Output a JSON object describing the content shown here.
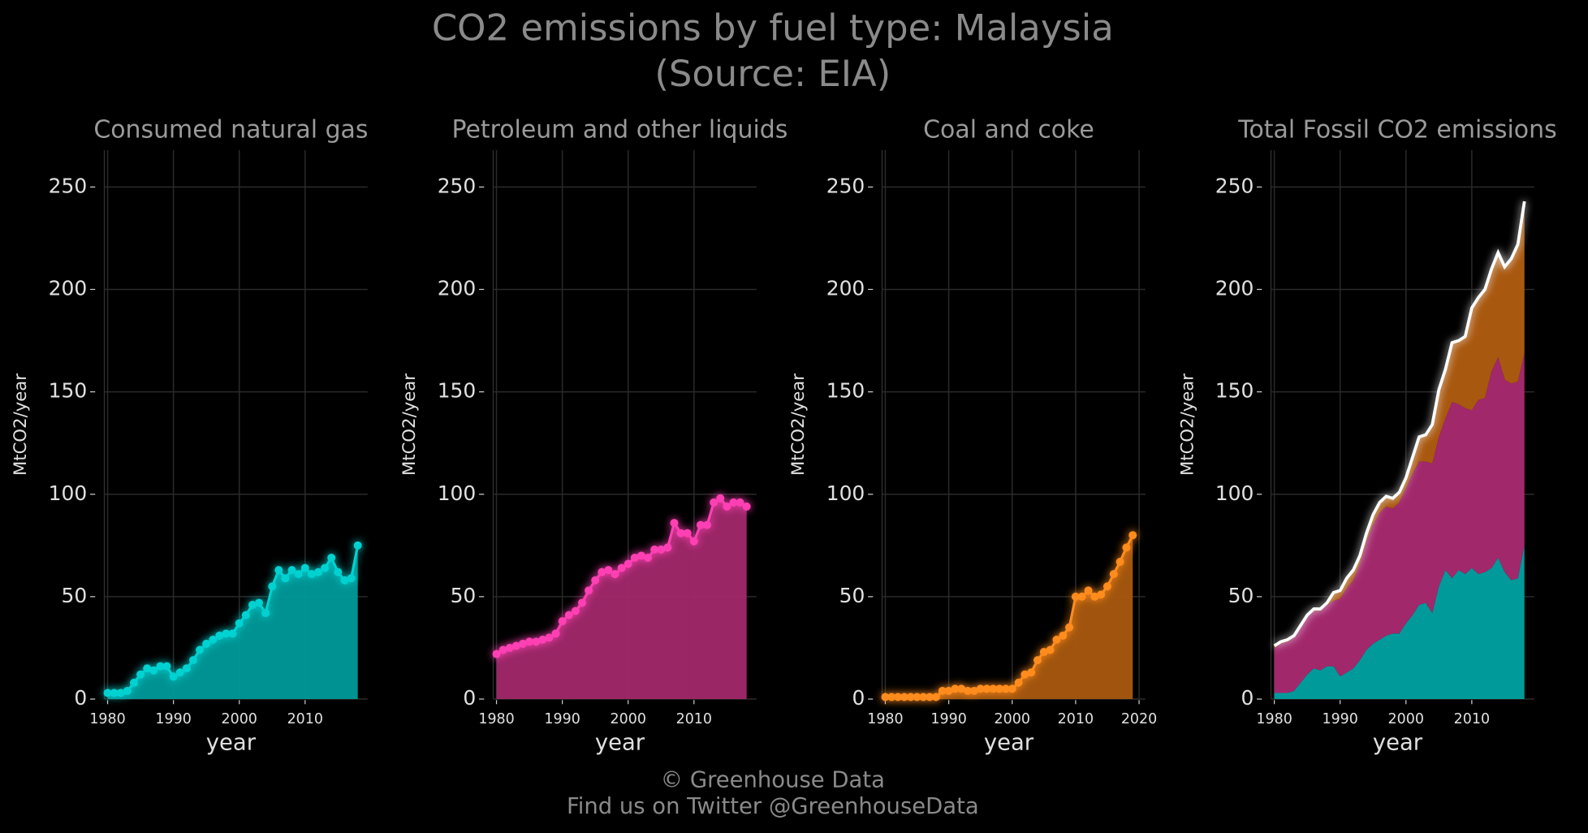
{
  "title": "CO2 emissions by fuel type: Malaysia",
  "subtitle": "(Source: EIA)",
  "footer": [
    "© Greenhouse Data",
    "Find us on Twitter @GreenhouseData"
  ],
  "chart_data": [
    {
      "type": "area",
      "title": "Consumed natural gas",
      "x_label": "year",
      "y_label": "MtCO2/year",
      "color": "#00d2d2",
      "fill": "#009a9a",
      "x": [
        1980,
        1981,
        1982,
        1983,
        1984,
        1985,
        1986,
        1987,
        1988,
        1989,
        1990,
        1991,
        1992,
        1993,
        1994,
        1995,
        1996,
        1997,
        1998,
        1999,
        2000,
        2001,
        2002,
        2003,
        2004,
        2005,
        2006,
        2007,
        2008,
        2009,
        2010,
        2011,
        2012,
        2013,
        2014,
        2015,
        2016,
        2017,
        2018
      ],
      "values": [
        3,
        3,
        3,
        4,
        8,
        12,
        15,
        14,
        16,
        16,
        11,
        13,
        15,
        19,
        24,
        27,
        29,
        31,
        32,
        32,
        37,
        41,
        46,
        47,
        42,
        55,
        63,
        59,
        63,
        61,
        64,
        61,
        62,
        64,
        69,
        62,
        58,
        59,
        75
      ],
      "xlim": [
        1979.5,
        2019.5
      ],
      "ylim": [
        0,
        268
      ],
      "xticks": [
        1980,
        1990,
        2000,
        2010
      ],
      "yticks": [
        0,
        50,
        100,
        150,
        200,
        250
      ],
      "grid": true
    },
    {
      "type": "area",
      "title": "Petroleum and other liquids",
      "x_label": "year",
      "y_label": "MtCO2/year",
      "color": "#ff40b4",
      "fill": "#a2286c",
      "x": [
        1980,
        1981,
        1982,
        1983,
        1984,
        1985,
        1986,
        1987,
        1988,
        1989,
        1990,
        1991,
        1992,
        1993,
        1994,
        1995,
        1996,
        1997,
        1998,
        1999,
        2000,
        2001,
        2002,
        2003,
        2004,
        2005,
        2006,
        2007,
        2008,
        2009,
        2010,
        2011,
        2012,
        2013,
        2014,
        2015,
        2016,
        2017,
        2018
      ],
      "values": [
        22,
        24,
        25,
        26,
        27,
        28,
        28,
        29,
        30,
        32,
        38,
        41,
        43,
        47,
        53,
        58,
        62,
        63,
        61,
        64,
        66,
        69,
        70,
        69,
        73,
        73,
        74,
        86,
        81,
        81,
        77,
        85,
        85,
        96,
        98,
        94,
        96,
        96,
        94
      ],
      "xlim": [
        1979.5,
        2019.5
      ],
      "ylim": [
        0,
        268
      ],
      "xticks": [
        1980,
        1990,
        2000,
        2010
      ],
      "yticks": [
        0,
        50,
        100,
        150,
        200,
        250
      ],
      "grid": true
    },
    {
      "type": "area",
      "title": "Coal and coke",
      "x_label": "year",
      "y_label": "MtCO2/year",
      "color": "#ff8c1e",
      "fill": "#a9580f",
      "x": [
        1980,
        1981,
        1982,
        1983,
        1984,
        1985,
        1986,
        1987,
        1988,
        1989,
        1990,
        1991,
        1992,
        1993,
        1994,
        1995,
        1996,
        1997,
        1998,
        1999,
        2000,
        2001,
        2002,
        2003,
        2004,
        2005,
        2006,
        2007,
        2008,
        2009,
        2010,
        2011,
        2012,
        2013,
        2014,
        2015,
        2016,
        2017,
        2018,
        2019
      ],
      "values": [
        1,
        1,
        1,
        1,
        1,
        1,
        1,
        1,
        1,
        4,
        4,
        5,
        5,
        4,
        4,
        5,
        5,
        5,
        5,
        5,
        5,
        8,
        12,
        13,
        19,
        23,
        24,
        29,
        31,
        35,
        50,
        50,
        53,
        50,
        51,
        55,
        61,
        67,
        74,
        80
      ],
      "xlim": [
        1979.5,
        2021
      ],
      "ylim": [
        0,
        268
      ],
      "xticks": [
        1980,
        1990,
        2000,
        2010,
        2020
      ],
      "yticks": [
        0,
        50,
        100,
        150,
        200,
        250
      ],
      "grid": true
    },
    {
      "type": "stacked_area",
      "title": "Total Fossil CO2 emissions",
      "x_label": "year",
      "y_label": "MtCO2/year",
      "color": "#ffffff",
      "x": [
        1980,
        1981,
        1982,
        1983,
        1984,
        1985,
        1986,
        1987,
        1988,
        1989,
        1990,
        1991,
        1992,
        1993,
        1994,
        1995,
        1996,
        1997,
        1998,
        1999,
        2000,
        2001,
        2002,
        2003,
        2004,
        2005,
        2006,
        2007,
        2008,
        2009,
        2010,
        2011,
        2012,
        2013,
        2014,
        2015,
        2016,
        2017,
        2018
      ],
      "series": [
        {
          "color": "#009a9a",
          "values": [
            3,
            3,
            3,
            4,
            8,
            12,
            15,
            14,
            16,
            16,
            11,
            13,
            15,
            19,
            24,
            27,
            29,
            31,
            32,
            32,
            37,
            41,
            46,
            47,
            42,
            55,
            63,
            59,
            63,
            61,
            64,
            61,
            62,
            64,
            69,
            62,
            58,
            59,
            75
          ]
        },
        {
          "color": "#a2286c",
          "values": [
            22,
            24,
            25,
            26,
            27,
            28,
            28,
            29,
            30,
            32,
            38,
            41,
            43,
            47,
            53,
            58,
            62,
            63,
            61,
            64,
            66,
            69,
            70,
            69,
            73,
            73,
            74,
            86,
            81,
            81,
            77,
            85,
            85,
            96,
            98,
            94,
            96,
            96,
            94
          ]
        },
        {
          "color": "#a9580f",
          "values": [
            1,
            1,
            1,
            1,
            1,
            1,
            1,
            1,
            1,
            4,
            4,
            5,
            5,
            4,
            4,
            5,
            5,
            5,
            5,
            5,
            5,
            8,
            12,
            13,
            19,
            23,
            24,
            29,
            31,
            35,
            50,
            50,
            53,
            50,
            51,
            55,
            61,
            67,
            74
          ]
        }
      ],
      "xlim": [
        1979.5,
        2019.5
      ],
      "ylim": [
        0,
        268
      ],
      "xticks": [
        1980,
        1990,
        2000,
        2010
      ],
      "yticks": [
        0,
        50,
        100,
        150,
        200,
        250
      ],
      "grid": true
    }
  ]
}
